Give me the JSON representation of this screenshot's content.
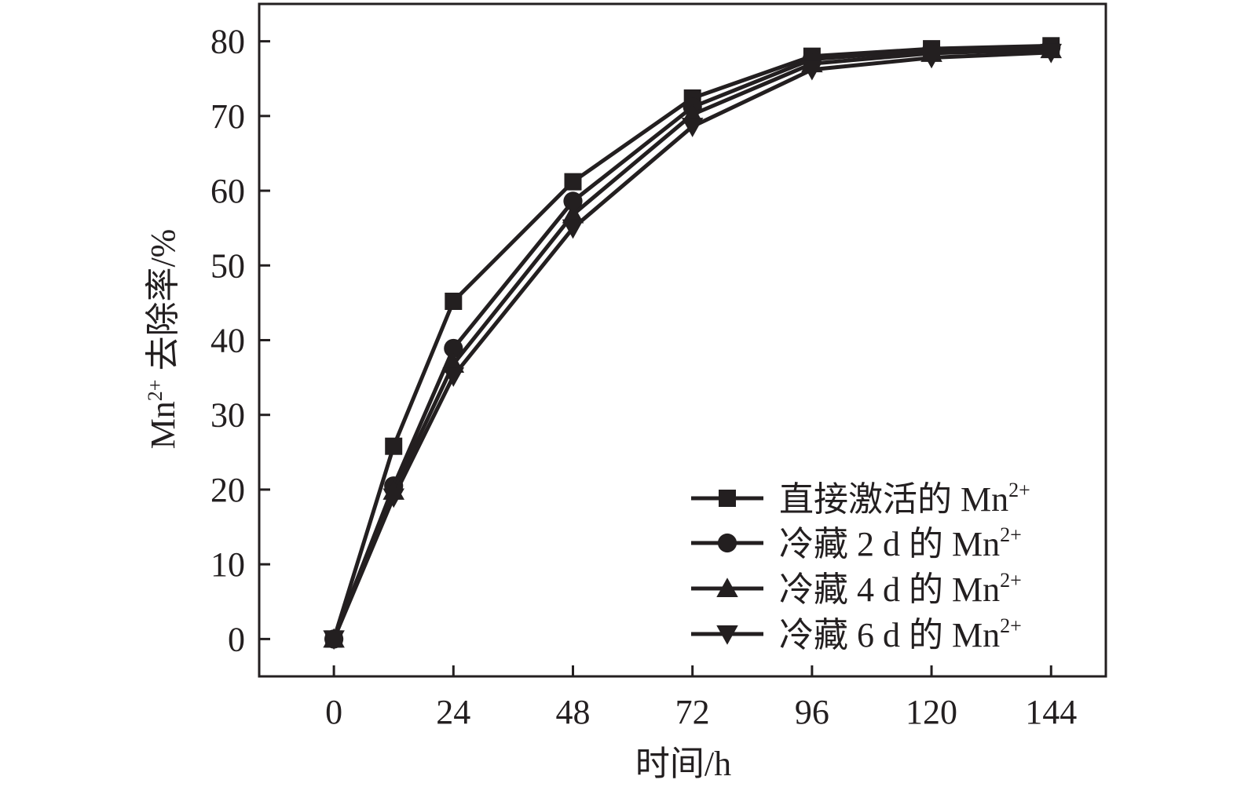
{
  "chart_data": {
    "type": "line",
    "title": "",
    "xlabel": "时间/h",
    "ylabel": {
      "prefix": "Mn",
      "sup": "2+",
      "suffix": " 去除率/%"
    },
    "xlim": [
      -15,
      155
    ],
    "ylim": [
      -5,
      85
    ],
    "x_ticks": [
      0,
      24,
      48,
      72,
      96,
      120,
      144
    ],
    "y_ticks": [
      0,
      10,
      20,
      30,
      40,
      50,
      60,
      70,
      80
    ],
    "legend_position": "bottom-right",
    "grid": false,
    "series": [
      {
        "name": "直接激活的 Mn",
        "name_sup": "2+",
        "marker": "square",
        "x": [
          0,
          12,
          24,
          48,
          72,
          96,
          120,
          144
        ],
        "y": [
          0,
          25.8,
          45.2,
          61.2,
          72.4,
          78.0,
          79.0,
          79.4
        ]
      },
      {
        "name": "冷藏 2 d 的 Mn",
        "name_sup": "2+",
        "marker": "circle",
        "x": [
          0,
          12,
          24,
          48,
          72,
          96,
          120,
          144
        ],
        "y": [
          0,
          20.5,
          38.9,
          58.6,
          71.2,
          77.6,
          78.8,
          79.2
        ]
      },
      {
        "name": "冷藏 4 d 的 Mn",
        "name_sup": "2+",
        "marker": "triangle-up",
        "x": [
          0,
          12,
          24,
          48,
          72,
          96,
          120,
          144
        ],
        "y": [
          0,
          19.8,
          36.8,
          56.8,
          70.2,
          77.0,
          78.4,
          78.9
        ]
      },
      {
        "name": "冷藏 6 d 的 Mn",
        "name_sup": "2+",
        "marker": "triangle-down",
        "x": [
          0,
          12,
          24,
          48,
          72,
          96,
          120,
          144
        ],
        "y": [
          0,
          19.0,
          35.2,
          55.0,
          68.6,
          76.2,
          77.8,
          78.5
        ]
      }
    ],
    "colors": {
      "ink": "#231f20"
    }
  }
}
